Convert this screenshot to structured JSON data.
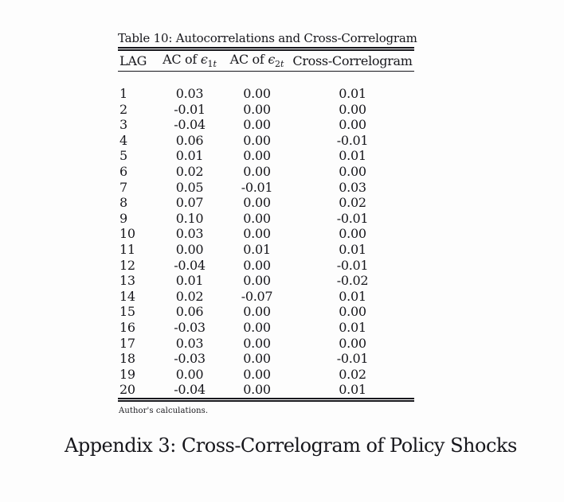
{
  "colors": {
    "background": "#fdfdfd",
    "text": "#17171c",
    "rule": "#17171c"
  },
  "table": {
    "caption": "Table 10: Autocorrelations and Cross-Correlogram",
    "headers": [
      {
        "label": "LAG"
      },
      {
        "prefix": "AC of ",
        "symbol": "ϵ",
        "sub_num": "1",
        "sub_var": "t"
      },
      {
        "prefix": "AC of ",
        "symbol": "ϵ",
        "sub_num": "2",
        "sub_var": "t"
      },
      {
        "label": "Cross-Correlogram"
      }
    ],
    "rows": [
      [
        "1",
        "0.03",
        "0.00",
        "0.01"
      ],
      [
        "2",
        "-0.01",
        "0.00",
        "0.00"
      ],
      [
        "3",
        "-0.04",
        "0.00",
        "0.00"
      ],
      [
        "4",
        "0.06",
        "0.00",
        "-0.01"
      ],
      [
        "5",
        "0.01",
        "0.00",
        "0.01"
      ],
      [
        "6",
        "0.02",
        "0.00",
        "0.00"
      ],
      [
        "7",
        "0.05",
        "-0.01",
        "0.03"
      ],
      [
        "8",
        "0.07",
        "0.00",
        "0.02"
      ],
      [
        "9",
        "0.10",
        "0.00",
        "-0.01"
      ],
      [
        "10",
        "0.03",
        "0.00",
        "0.00"
      ],
      [
        "11",
        "0.00",
        "0.01",
        "0.01"
      ],
      [
        "12",
        "-0.04",
        "0.00",
        "-0.01"
      ],
      [
        "13",
        "0.01",
        "0.00",
        "-0.02"
      ],
      [
        "14",
        "0.02",
        "-0.07",
        "0.01"
      ],
      [
        "15",
        "0.06",
        "0.00",
        "0.00"
      ],
      [
        "16",
        "-0.03",
        "0.00",
        "0.01"
      ],
      [
        "17",
        "0.03",
        "0.00",
        "0.00"
      ],
      [
        "18",
        "-0.03",
        "0.00",
        "-0.01"
      ],
      [
        "19",
        "0.00",
        "0.00",
        "0.02"
      ],
      [
        "20",
        "-0.04",
        "0.00",
        "0.01"
      ]
    ],
    "footnote": "Author's calculations."
  },
  "appendix_heading": "Appendix 3: Cross-Correlogram of Policy Shocks"
}
